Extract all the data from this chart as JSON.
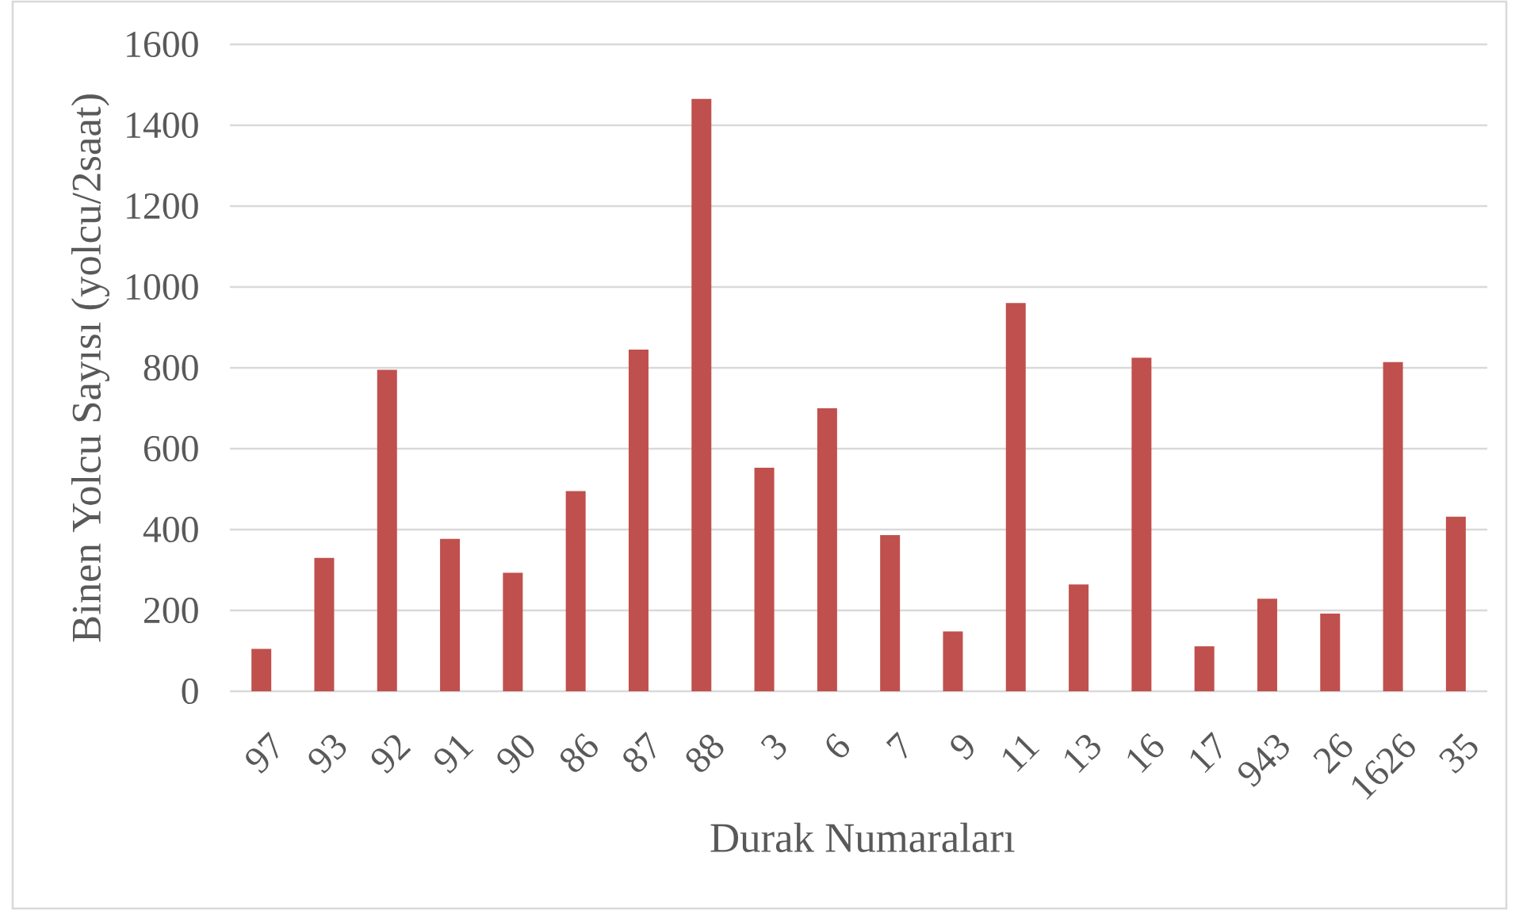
{
  "chart_data": {
    "type": "bar",
    "xlabel": "Durak Numaraları",
    "ylabel": "Binen Yolcu Sayısı (yolcu/2saat)",
    "categories": [
      "97",
      "93",
      "92",
      "91",
      "90",
      "86",
      "87",
      "88",
      "3",
      "6",
      "7",
      "9",
      "11",
      "13",
      "16",
      "17",
      "943",
      "26",
      "1626",
      "35"
    ],
    "values": [
      105,
      330,
      795,
      377,
      293,
      495,
      845,
      1465,
      553,
      700,
      386,
      148,
      960,
      264,
      825,
      111,
      229,
      192,
      814,
      432
    ],
    "color": "#c0504d",
    "ylim": [
      0,
      1600
    ],
    "yticks": [
      0,
      200,
      400,
      600,
      800,
      1000,
      1200,
      1400,
      1600
    ],
    "grid": "y"
  }
}
